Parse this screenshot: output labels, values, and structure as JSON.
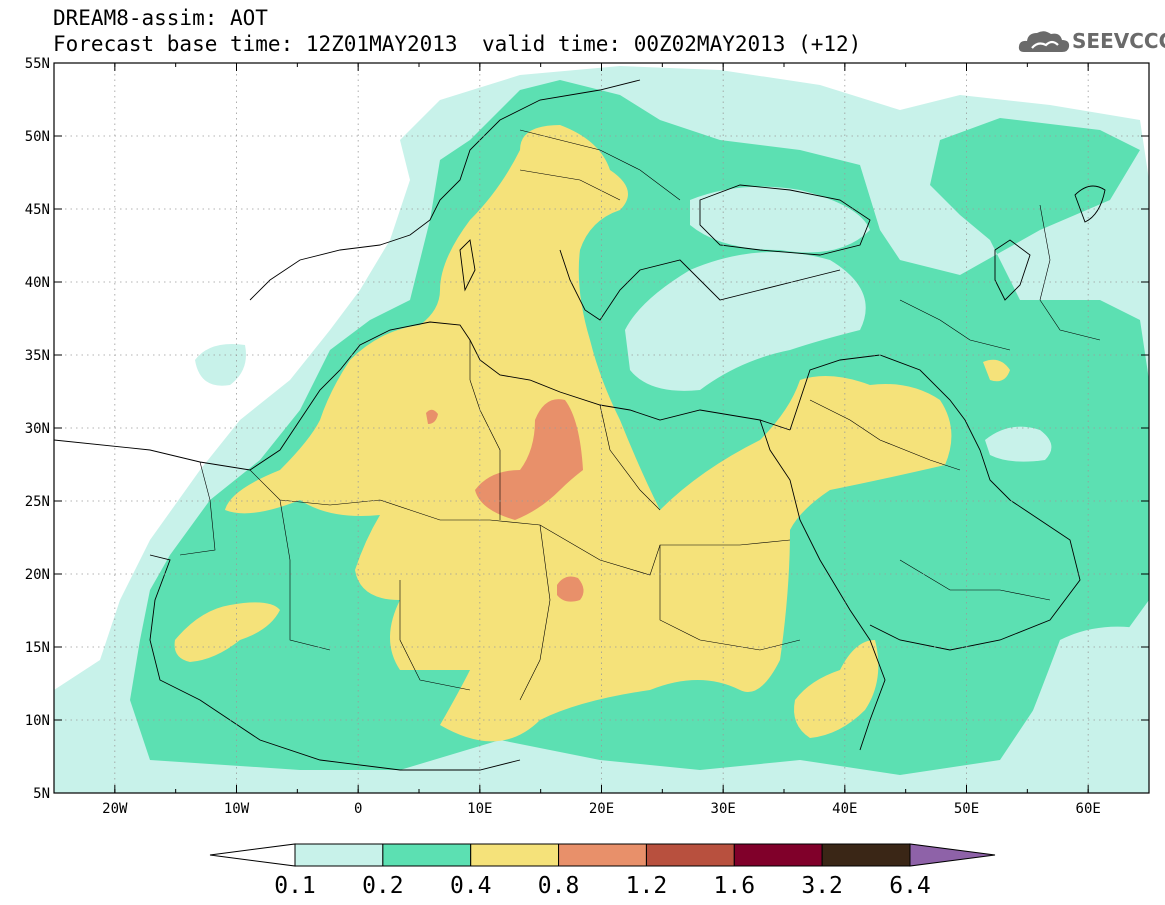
{
  "title": {
    "line1": "DREAM8-assim: AOT",
    "line2_base": "Forecast base time: 12Z01MAY2013",
    "line2_valid": "valid time: 00Z02MAY2013 (+12)"
  },
  "logo": {
    "text": "SEEVCCC",
    "icon": "cloud-icon",
    "color": "#6a6a6a"
  },
  "map": {
    "lon_range": [
      -25,
      65
    ],
    "lat_range": [
      5,
      55
    ],
    "lon_ticks": [
      {
        "v": -20,
        "label": "20W"
      },
      {
        "v": -10,
        "label": "10W"
      },
      {
        "v": 0,
        "label": "0"
      },
      {
        "v": 10,
        "label": "10E"
      },
      {
        "v": 20,
        "label": "20E"
      },
      {
        "v": 30,
        "label": "30E"
      },
      {
        "v": 40,
        "label": "40E"
      },
      {
        "v": 50,
        "label": "50E"
      },
      {
        "v": 60,
        "label": "60E"
      }
    ],
    "lat_ticks": [
      {
        "v": 55,
        "label": "55N"
      },
      {
        "v": 50,
        "label": "50N"
      },
      {
        "v": 45,
        "label": "45N"
      },
      {
        "v": 40,
        "label": "40N"
      },
      {
        "v": 35,
        "label": "35N"
      },
      {
        "v": 30,
        "label": "30N"
      },
      {
        "v": 25,
        "label": "25N"
      },
      {
        "v": 20,
        "label": "20N"
      },
      {
        "v": 15,
        "label": "15N"
      },
      {
        "v": 10,
        "label": "10N"
      },
      {
        "v": 5,
        "label": "5N"
      }
    ],
    "grid": "dotted"
  },
  "colorbar": {
    "colors": [
      "#ffffff",
      "#c8f2ea",
      "#5ce0b2",
      "#f5e27a",
      "#e8906a",
      "#b8503e",
      "#80002a",
      "#3a2616",
      "#8e62a8"
    ],
    "labels": [
      "0.1",
      "0.2",
      "0.4",
      "0.8",
      "1.2",
      "1.6",
      "3.2",
      "6.4"
    ]
  }
}
